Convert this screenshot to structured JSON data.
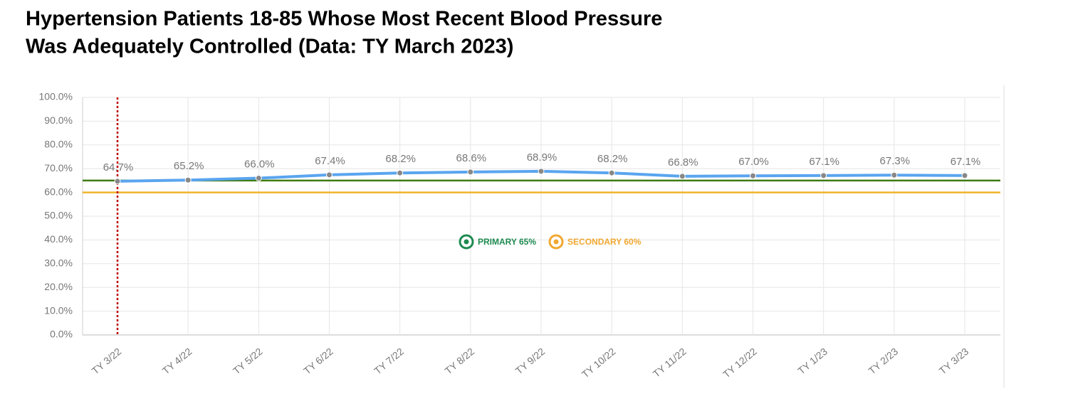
{
  "chart_data": {
    "type": "line",
    "title": [
      "Hypertension Patients 18-85 Whose Most Recent Blood Pressure",
      "Was Adequately Controlled (Data: TY March 2023)"
    ],
    "categories": [
      "TY 3/22",
      "TY 4/22",
      "TY 5/22",
      "TY 6/22",
      "TY 7/22",
      "TY 8/22",
      "TY 9/22",
      "TY 10/22",
      "TY 11/22",
      "TY 12/22",
      "TY 1/23",
      "TY 2/23",
      "TY 3/23"
    ],
    "series": [
      {
        "color": "#5aa5ef",
        "values": [
          64.7,
          65.2,
          66.0,
          67.4,
          68.2,
          68.6,
          68.9,
          68.2,
          66.8,
          67.0,
          67.1,
          67.3,
          67.1
        ],
        "value_labels": [
          "64.7%",
          "65.2%",
          "66.0%",
          "67.4%",
          "68.2%",
          "68.6%",
          "68.9%",
          "68.2%",
          "66.8%",
          "67.0%",
          "67.1%",
          "67.3%",
          "67.1%"
        ]
      }
    ],
    "reference_lines": [
      {
        "name": "PRIMARY 65%",
        "value": 65,
        "color": "#3d7a10",
        "legend_color": "#1e8a50"
      },
      {
        "name": "SECONDARY 60%",
        "value": 60,
        "color": "#f0b429",
        "legend_color": "#f0a830"
      }
    ],
    "highlight_category": {
      "index": 0,
      "color": "#c00000"
    },
    "ylim": [
      0,
      100
    ],
    "yticks": [
      {
        "value": 0,
        "label": "0.0%"
      },
      {
        "value": 10,
        "label": "10.0%"
      },
      {
        "value": 20,
        "label": "20.0%"
      },
      {
        "value": 30,
        "label": "30.0%"
      },
      {
        "value": 40,
        "label": "40.0%"
      },
      {
        "value": 50,
        "label": "50.0%"
      },
      {
        "value": 60,
        "label": "60.0%"
      },
      {
        "value": 70,
        "label": "70.0%"
      },
      {
        "value": 80,
        "label": "80.0%"
      },
      {
        "value": 90,
        "label": "90.0%"
      },
      {
        "value": 100,
        "label": "100.0%"
      }
    ],
    "grid": true
  }
}
